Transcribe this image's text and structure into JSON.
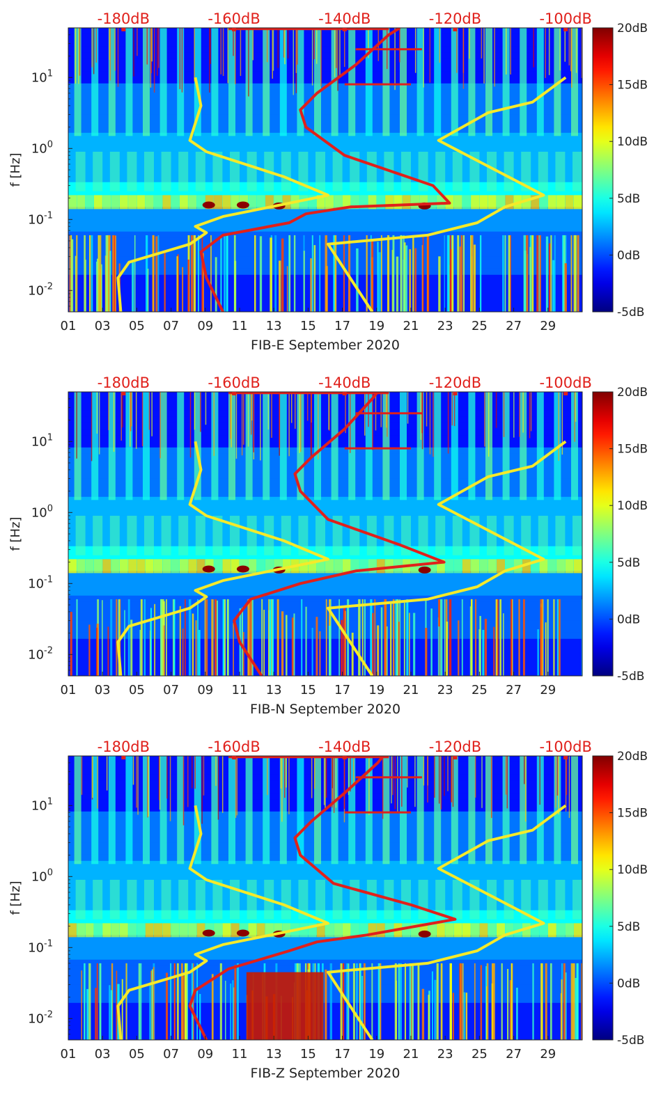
{
  "figure": {
    "colorbar": {
      "labels": [
        "20dB",
        "15dB",
        "10dB",
        "5dB",
        "0dB",
        "-5dB"
      ],
      "values": [
        20,
        15,
        10,
        5,
        0,
        -5
      ],
      "range": [
        -5,
        20
      ],
      "colormap": "jet",
      "colors": [
        "#00008f",
        "#0000ff",
        "#00ffff",
        "#ffff00",
        "#ff0000",
        "#800000"
      ]
    },
    "top_axis": {
      "labels": [
        "-180dB",
        "-160dB",
        "-140dB",
        "-120dB",
        "-100dB"
      ],
      "values": [
        -180,
        -160,
        -140,
        -120,
        -100
      ],
      "color": "#e0201b"
    },
    "x_ticks": [
      "01",
      "03",
      "05",
      "07",
      "09",
      "11",
      "13",
      "15",
      "17",
      "19",
      "21",
      "23",
      "25",
      "27",
      "29"
    ],
    "y_tick_bases": [
      "10",
      "10",
      "10",
      "10"
    ],
    "y_tick_exponents": [
      "-2",
      "-1",
      "0",
      "1"
    ],
    "ylabel": "f [Hz]",
    "curve_colors": {
      "noise_model": "#f5ea2a",
      "median_psd": "#e0201b"
    }
  },
  "chart_data": [
    {
      "type": "heatmap",
      "title": "FIB-E September 2020",
      "xlabel": "FIB-E September 2020",
      "ylabel": "f [Hz]",
      "x_range_days": [
        1,
        31
      ],
      "y_range_hz": [
        0.005,
        50
      ],
      "y_scale": "log",
      "color_range_db": [
        -5,
        20
      ],
      "top_axis_range_db": [
        -190,
        -97
      ],
      "series": [
        {
          "name": "noise-model-high",
          "color": "yellow",
          "points_db_hz": [
            [
              -180.5,
              0.005
            ],
            [
              -181,
              0.015
            ],
            [
              -179,
              0.025
            ],
            [
              -168,
              0.045
            ],
            [
              -165,
              0.065
            ],
            [
              -167,
              0.08
            ],
            [
              -162,
              0.11
            ],
            [
              -150,
              0.17
            ],
            [
              -143,
              0.22
            ],
            [
              -151,
              0.4
            ],
            [
              -165,
              0.9
            ],
            [
              -168,
              1.3
            ],
            [
              -166,
              4
            ],
            [
              -167,
              10
            ]
          ]
        },
        {
          "name": "noise-model-low",
          "color": "yellow",
          "points_db_hz": [
            [
              -135,
              0.005
            ],
            [
              -143,
              0.045
            ],
            [
              -125,
              0.06
            ],
            [
              -116,
              0.09
            ],
            [
              -111,
              0.15
            ],
            [
              -104,
              0.22
            ],
            [
              -123,
              1.3
            ],
            [
              -114,
              3.2
            ],
            [
              -106,
              4.5
            ],
            [
              -100,
              10
            ]
          ]
        },
        {
          "name": "median-psd",
          "color": "red",
          "points_db_hz": [
            [
              -162,
              0.005
            ],
            [
              -165,
              0.015
            ],
            [
              -166,
              0.035
            ],
            [
              -162,
              0.06
            ],
            [
              -150,
              0.09
            ],
            [
              -147,
              0.12
            ],
            [
              -139,
              0.15
            ],
            [
              -121,
              0.17
            ],
            [
              -124,
              0.3
            ],
            [
              -140,
              0.8
            ],
            [
              -147,
              2
            ],
            [
              -148,
              3.5
            ],
            [
              -145,
              6
            ],
            [
              -138,
              15
            ],
            [
              -132,
              40
            ],
            [
              -130,
              50
            ]
          ]
        }
      ]
    },
    {
      "type": "heatmap",
      "title": "FIB-N September 2020",
      "xlabel": "FIB-N September 2020",
      "ylabel": "f [Hz]",
      "x_range_days": [
        1,
        31
      ],
      "y_range_hz": [
        0.005,
        50
      ],
      "y_scale": "log",
      "color_range_db": [
        -5,
        20
      ],
      "top_axis_range_db": [
        -190,
        -97
      ],
      "series": [
        {
          "name": "noise-model-high",
          "color": "yellow",
          "points_db_hz": [
            [
              -180.5,
              0.005
            ],
            [
              -181,
              0.015
            ],
            [
              -179,
              0.025
            ],
            [
              -168,
              0.045
            ],
            [
              -165,
              0.065
            ],
            [
              -167,
              0.08
            ],
            [
              -162,
              0.11
            ],
            [
              -150,
              0.17
            ],
            [
              -143,
              0.22
            ],
            [
              -151,
              0.4
            ],
            [
              -165,
              0.9
            ],
            [
              -168,
              1.3
            ],
            [
              -166,
              4
            ],
            [
              -167,
              10
            ]
          ]
        },
        {
          "name": "noise-model-low",
          "color": "yellow",
          "points_db_hz": [
            [
              -135,
              0.005
            ],
            [
              -143,
              0.045
            ],
            [
              -125,
              0.06
            ],
            [
              -116,
              0.09
            ],
            [
              -111,
              0.15
            ],
            [
              -104,
              0.22
            ],
            [
              -123,
              1.3
            ],
            [
              -114,
              3.2
            ],
            [
              -106,
              4.5
            ],
            [
              -100,
              10
            ]
          ]
        },
        {
          "name": "median-psd",
          "color": "red",
          "points_db_hz": [
            [
              -155,
              0.005
            ],
            [
              -159,
              0.015
            ],
            [
              -160,
              0.03
            ],
            [
              -157,
              0.06
            ],
            [
              -148,
              0.1
            ],
            [
              -138,
              0.15
            ],
            [
              -122,
              0.2
            ],
            [
              -130,
              0.35
            ],
            [
              -143,
              0.8
            ],
            [
              -148,
              2
            ],
            [
              -149,
              3.5
            ],
            [
              -146,
              6
            ],
            [
              -140,
              15
            ],
            [
              -135,
              40
            ],
            [
              -134,
              50
            ]
          ]
        }
      ]
    },
    {
      "type": "heatmap",
      "title": "FIB-Z September 2020",
      "xlabel": "FIB-Z September 2020",
      "ylabel": "f [Hz]",
      "x_range_days": [
        1,
        31
      ],
      "y_range_hz": [
        0.005,
        50
      ],
      "y_scale": "log",
      "color_range_db": [
        -5,
        20
      ],
      "top_axis_range_db": [
        -190,
        -97
      ],
      "series": [
        {
          "name": "noise-model-high",
          "color": "yellow",
          "points_db_hz": [
            [
              -180.5,
              0.005
            ],
            [
              -181,
              0.015
            ],
            [
              -179,
              0.025
            ],
            [
              -168,
              0.045
            ],
            [
              -165,
              0.065
            ],
            [
              -167,
              0.08
            ],
            [
              -162,
              0.11
            ],
            [
              -150,
              0.17
            ],
            [
              -143,
              0.22
            ],
            [
              -151,
              0.4
            ],
            [
              -165,
              0.9
            ],
            [
              -168,
              1.3
            ],
            [
              -166,
              4
            ],
            [
              -167,
              10
            ]
          ]
        },
        {
          "name": "noise-model-low",
          "color": "yellow",
          "points_db_hz": [
            [
              -135,
              0.005
            ],
            [
              -143,
              0.045
            ],
            [
              -125,
              0.06
            ],
            [
              -116,
              0.09
            ],
            [
              -111,
              0.15
            ],
            [
              -104,
              0.22
            ],
            [
              -123,
              1.3
            ],
            [
              -114,
              3.2
            ],
            [
              -106,
              4.5
            ],
            [
              -100,
              10
            ]
          ]
        },
        {
          "name": "median-psd",
          "color": "red",
          "points_db_hz": [
            [
              -165,
              0.005
            ],
            [
              -168,
              0.015
            ],
            [
              -167,
              0.025
            ],
            [
              -161,
              0.05
            ],
            [
              -150,
              0.09
            ],
            [
              -145,
              0.12
            ],
            [
              -136,
              0.15
            ],
            [
              -120,
              0.25
            ],
            [
              -128,
              0.4
            ],
            [
              -142,
              0.8
            ],
            [
              -148,
              2
            ],
            [
              -149,
              3.5
            ],
            [
              -146,
              6
            ],
            [
              -140,
              15
            ],
            [
              -134,
              40
            ],
            [
              -133,
              50
            ]
          ]
        }
      ]
    }
  ]
}
